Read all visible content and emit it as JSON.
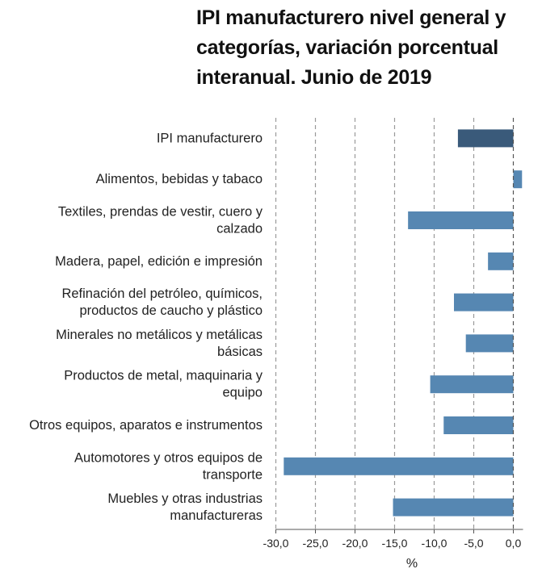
{
  "chart_data": {
    "type": "bar",
    "orientation": "horizontal",
    "title": "IPI manufacturero nivel general y categorías, variación porcentual interanual. Junio de 2019",
    "xlabel": "%",
    "ylabel": "",
    "xlim": [
      -30,
      0
    ],
    "x_ticks": [
      "-30,0",
      "-25,0",
      "-20,0",
      "-15,0",
      "-10,0",
      "-5,0",
      "0,0"
    ],
    "grid": "vertical dashed",
    "categories": [
      [
        "IPI manufacturero"
      ],
      [
        "Alimentos, bebidas y tabaco"
      ],
      [
        "Textiles, prendas de vestir, cuero y",
        "calzado"
      ],
      [
        "Madera, papel, edición e impresión"
      ],
      [
        "Refinación del petróleo, químicos,",
        "productos de caucho y plástico"
      ],
      [
        "Minerales no metálicos y metálicas",
        "básicas"
      ],
      [
        "Productos de metal, maquinaria y",
        "equipo"
      ],
      [
        "Otros equipos, aparatos e instrumentos"
      ],
      [
        "Automotores y otros equipos de",
        "transporte"
      ],
      [
        "Muebles y otras industrias",
        "manufactureras"
      ]
    ],
    "values": [
      -7.0,
      1.1,
      -13.3,
      -3.2,
      -7.5,
      -6.0,
      -10.5,
      -8.8,
      -29.0,
      -15.2
    ],
    "colors": {
      "highlight": "#3a5a7a",
      "bar": "#5687b2",
      "grid": "#9a9a9a",
      "axis": "#555555"
    }
  }
}
